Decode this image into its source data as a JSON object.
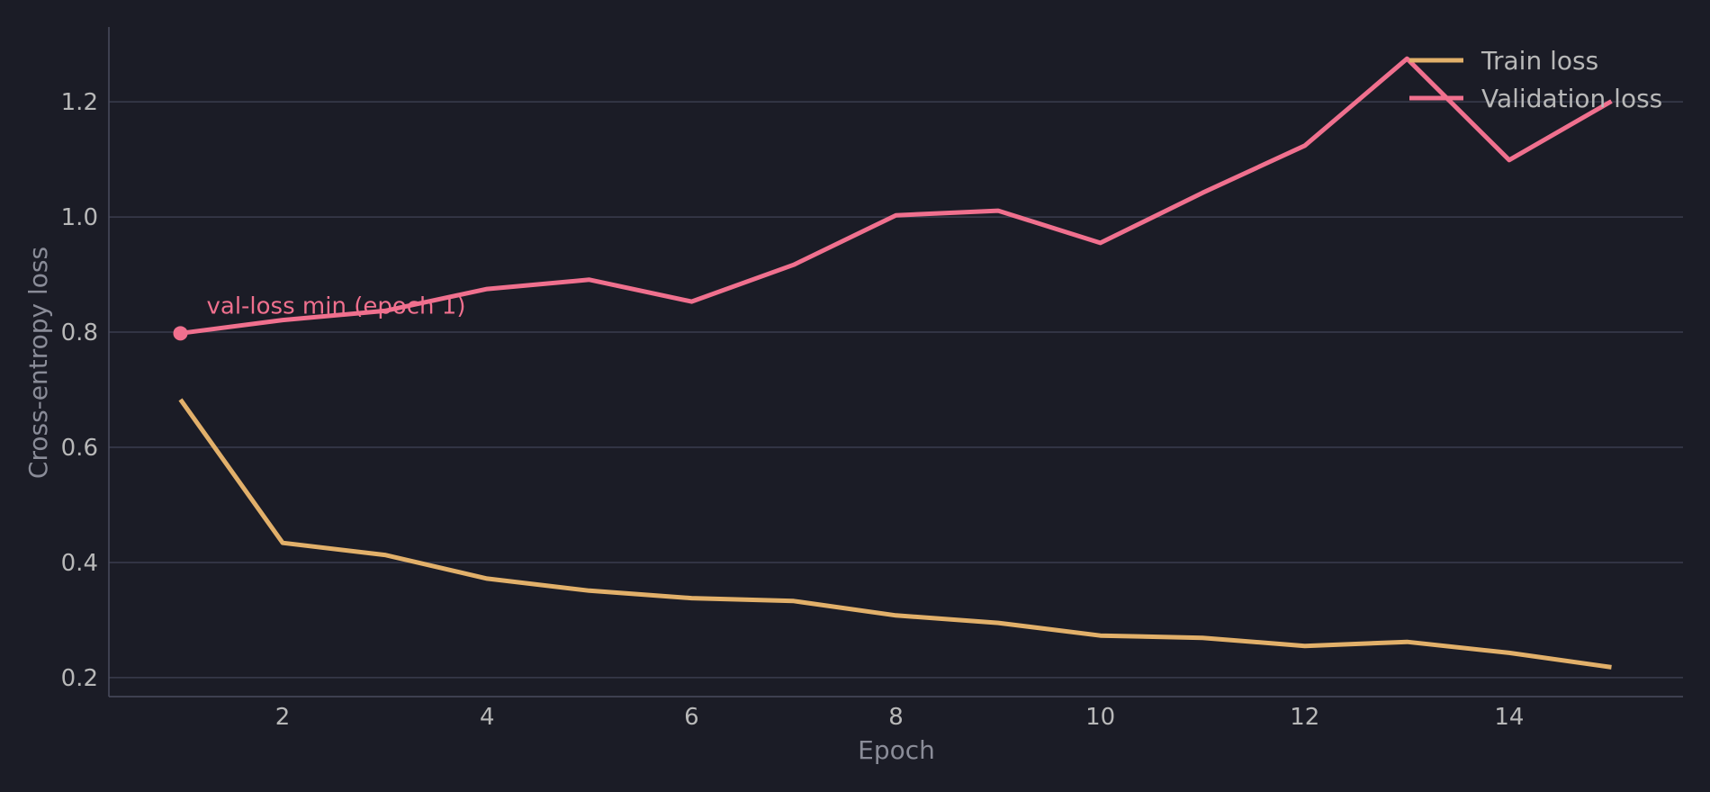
{
  "chart_data": {
    "type": "line",
    "xlabel": "Epoch",
    "ylabel": "Cross-entropy loss",
    "x": [
      1,
      2,
      3,
      4,
      5,
      6,
      7,
      8,
      9,
      10,
      11,
      12,
      13,
      14,
      15
    ],
    "series": [
      {
        "name": "Train loss",
        "color": "#e2b06a",
        "values": [
          0.683,
          0.434,
          0.413,
          0.372,
          0.351,
          0.338,
          0.333,
          0.308,
          0.295,
          0.273,
          0.269,
          0.255,
          0.262,
          0.243,
          0.218
        ]
      },
      {
        "name": "Validation loss",
        "color": "#f0708e",
        "values": [
          0.798,
          0.821,
          0.837,
          0.875,
          0.891,
          0.853,
          0.917,
          1.003,
          1.011,
          0.955,
          1.042,
          1.124,
          1.275,
          1.099,
          1.201
        ]
      }
    ],
    "xlim": [
      0.3,
      15.7
    ],
    "ylim": [
      0.167,
      1.33
    ],
    "xticks": [
      2,
      4,
      6,
      8,
      10,
      12,
      14
    ],
    "yticks": [
      0.2,
      0.4,
      0.6,
      0.8,
      1.0,
      1.2
    ],
    "ytick_labels": [
      "0.2",
      "0.4",
      "0.6",
      "0.8",
      "1.0",
      "1.2"
    ],
    "grid": "horizontal",
    "legend_position": "top-right",
    "annotation": {
      "text": "val-loss min (epoch 1)",
      "x": 1,
      "y": 0.798,
      "color": "#f0708e"
    },
    "colors": {
      "background": "#1b1c26",
      "grid": "#3a3c4e",
      "axis": "#4a4c5e"
    }
  }
}
